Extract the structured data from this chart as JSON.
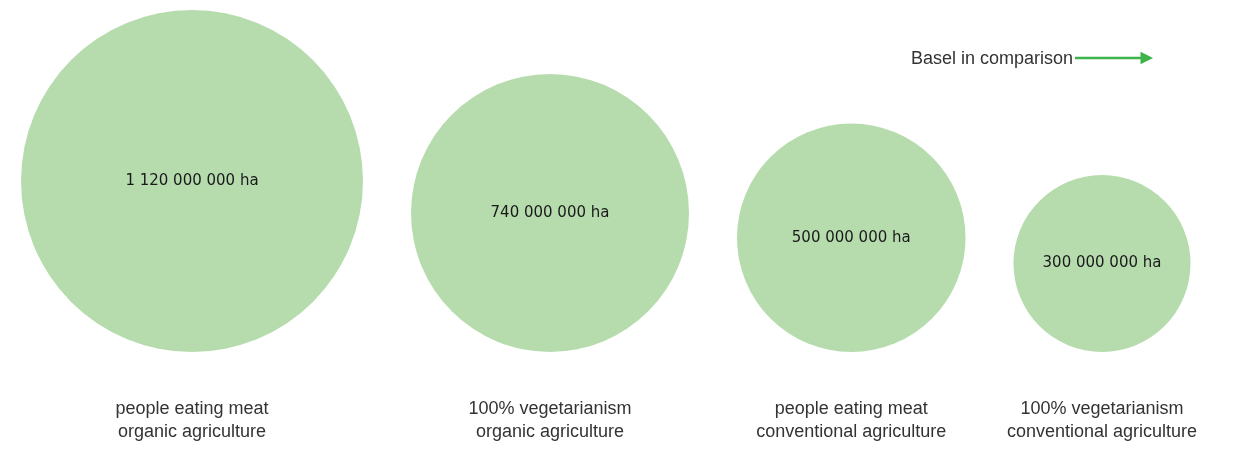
{
  "chart_data": {
    "type": "other",
    "categories": [
      "people eating meat\norganic agriculture",
      "100% vegetarianism\norganic agriculture",
      "people eating meat\nconventional agriculture",
      "100% vegetarianism\nconventional agriculture"
    ],
    "values": [
      1120000000,
      740000000,
      500000000,
      300000000
    ],
    "value_labels": [
      "1 120 000 000 ha",
      "740 000 000 ha",
      "500 000 000 ha",
      "300 000 000 ha"
    ],
    "color": "#b6dcad",
    "annotations": [
      "Basel in comparison"
    ]
  }
}
